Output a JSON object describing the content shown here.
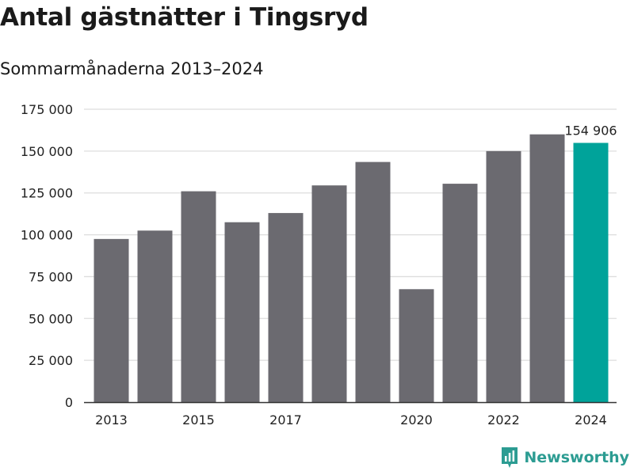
{
  "header": {
    "title": "Antal gästnätter i Tingsryd",
    "subtitle": "Sommarmånaderna 2013–2024"
  },
  "brand": {
    "name": "Newsworthy"
  },
  "colors": {
    "bar": "#6b6a70",
    "highlight": "#00a39a",
    "grid": "#dddddd",
    "axis": "#333333",
    "brand": "#2c9c92"
  },
  "chart_data": {
    "type": "bar",
    "categories": [
      "2013",
      "2014",
      "2015",
      "2016",
      "2017",
      "2018",
      "2019",
      "2020",
      "2021",
      "2022",
      "2023",
      "2024"
    ],
    "values": [
      97500,
      102500,
      126000,
      107500,
      113000,
      129500,
      143500,
      67500,
      130500,
      150000,
      160000,
      154906
    ],
    "x_tick_labels": [
      "2013",
      "",
      "2015",
      "",
      "2017",
      "",
      "",
      "2020",
      "",
      "2022",
      "",
      "2024"
    ],
    "y_ticks": [
      0,
      25000,
      50000,
      75000,
      100000,
      125000,
      150000,
      175000
    ],
    "y_tick_labels": [
      "0",
      "25 000",
      "50 000",
      "75 000",
      "100 000",
      "125 000",
      "150 000",
      "175 000"
    ],
    "ylim": [
      0,
      175000
    ],
    "highlight_index": 11,
    "annotation": {
      "index": 11,
      "text": "154 906"
    },
    "grid": true
  }
}
